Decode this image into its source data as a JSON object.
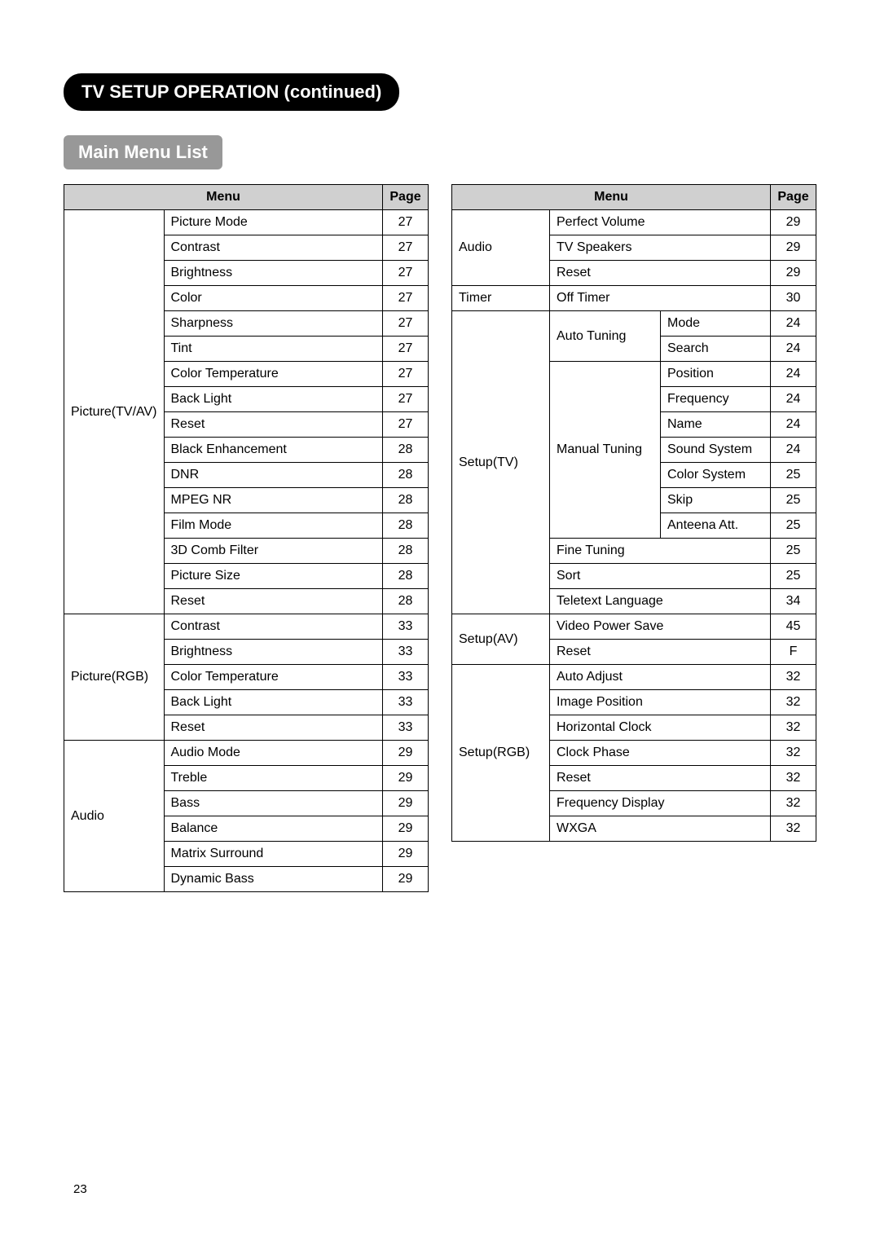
{
  "section_title": "TV SETUP OPERATION (continued)",
  "sub_heading": "Main Menu List",
  "headers": {
    "menu": "Menu",
    "page": "Page"
  },
  "page_number": "23",
  "left": {
    "groups": [
      {
        "category": "Picture(TV/AV)",
        "rows": [
          {
            "item": "Picture Mode",
            "page": "27"
          },
          {
            "item": "Contrast",
            "page": "27"
          },
          {
            "item": "Brightness",
            "page": "27"
          },
          {
            "item": "Color",
            "page": "27"
          },
          {
            "item": "Sharpness",
            "page": "27"
          },
          {
            "item": "Tint",
            "page": "27"
          },
          {
            "item": "Color Temperature",
            "page": "27"
          },
          {
            "item": "Back Light",
            "page": "27"
          },
          {
            "item": "Reset",
            "page": "27"
          },
          {
            "item": "Black Enhancement",
            "page": "28"
          },
          {
            "item": "DNR",
            "page": "28"
          },
          {
            "item": "MPEG NR",
            "page": "28"
          },
          {
            "item": "Film Mode",
            "page": "28"
          },
          {
            "item": "3D Comb Filter",
            "page": "28"
          },
          {
            "item": "Picture Size",
            "page": "28"
          },
          {
            "item": "Reset",
            "page": "28"
          }
        ]
      },
      {
        "category": "Picture(RGB)",
        "rows": [
          {
            "item": "Contrast",
            "page": "33"
          },
          {
            "item": "Brightness",
            "page": "33"
          },
          {
            "item": "Color Temperature",
            "page": "33"
          },
          {
            "item": "Back Light",
            "page": "33"
          },
          {
            "item": "Reset",
            "page": "33"
          }
        ]
      },
      {
        "category": "Audio",
        "rows": [
          {
            "item": "Audio Mode",
            "page": "29"
          },
          {
            "item": "Treble",
            "page": "29"
          },
          {
            "item": "Bass",
            "page": "29"
          },
          {
            "item": "Balance",
            "page": "29"
          },
          {
            "item": "Matrix Surround",
            "page": "29"
          },
          {
            "item": "Dynamic Bass",
            "page": "29"
          }
        ]
      }
    ]
  },
  "right": {
    "groups": [
      {
        "category": "Audio",
        "rows": [
          {
            "item": "Perfect Volume",
            "page": "29"
          },
          {
            "item": "TV Speakers",
            "page": "29"
          },
          {
            "item": "Reset",
            "page": "29"
          }
        ]
      },
      {
        "category": "Timer",
        "rows": [
          {
            "item": "Off Timer",
            "page": "30"
          }
        ]
      },
      {
        "category": "Setup(TV)",
        "rows": [
          {
            "sub": "Auto Tuning",
            "subrows": [
              {
                "item": "Mode",
                "page": "24"
              },
              {
                "item": "Search",
                "page": "24"
              }
            ]
          },
          {
            "sub": "Manual Tuning",
            "subrows": [
              {
                "item": "Position",
                "page": "24"
              },
              {
                "item": "Frequency",
                "page": "24"
              },
              {
                "item": "Name",
                "page": "24"
              },
              {
                "item": "Sound System",
                "page": "24"
              },
              {
                "item": "Color System",
                "page": "25"
              },
              {
                "item": "Skip",
                "page": "25"
              },
              {
                "item": "Anteena Att.",
                "page": "25"
              }
            ]
          },
          {
            "item": "Fine Tuning",
            "page": "25"
          },
          {
            "item": "Sort",
            "page": "25"
          },
          {
            "item": "Teletext Language",
            "page": "34"
          }
        ]
      },
      {
        "category": "Setup(AV)",
        "rows": [
          {
            "item": "Video Power Save",
            "page": "45"
          },
          {
            "item": "Reset",
            "page": "F"
          }
        ]
      },
      {
        "category": "Setup(RGB)",
        "rows": [
          {
            "item": "Auto Adjust",
            "page": "32"
          },
          {
            "item": "Image Position",
            "page": "32"
          },
          {
            "item": "Horizontal Clock",
            "page": "32"
          },
          {
            "item": "Clock Phase",
            "page": "32"
          },
          {
            "item": "Reset",
            "page": "32"
          },
          {
            "item": "Frequency Display",
            "page": "32"
          },
          {
            "item": "WXGA",
            "page": "32"
          }
        ]
      }
    ]
  }
}
